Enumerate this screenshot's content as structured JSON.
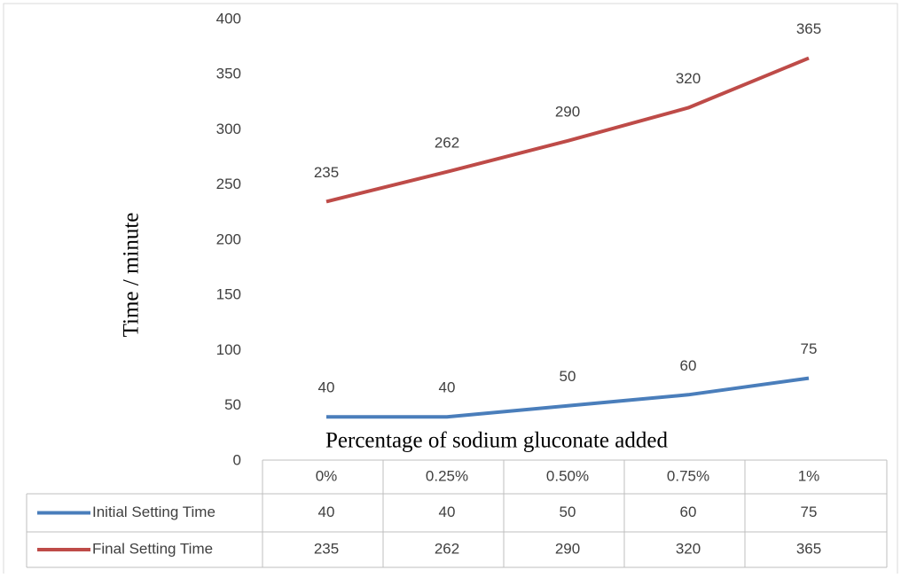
{
  "chart_data": {
    "type": "line",
    "x_axis_label": "Percentage of sodium gluconate added",
    "y_axis_label": "Time / minute",
    "categories": [
      "0%",
      "0.25%",
      "0.50%",
      "0.75%",
      "1%"
    ],
    "series": [
      {
        "name": "Initial Setting Time",
        "color": "#4a7ebb",
        "values": [
          40,
          40,
          50,
          60,
          75
        ]
      },
      {
        "name": "Final Setting Time",
        "color": "#be4b48",
        "values": [
          235,
          262,
          290,
          320,
          365
        ]
      }
    ],
    "ylim": [
      0,
      400
    ],
    "yticks": [
      0,
      50,
      100,
      150,
      200,
      250,
      300,
      350,
      400
    ],
    "grid": false,
    "data_labels": true,
    "data_table": true
  }
}
